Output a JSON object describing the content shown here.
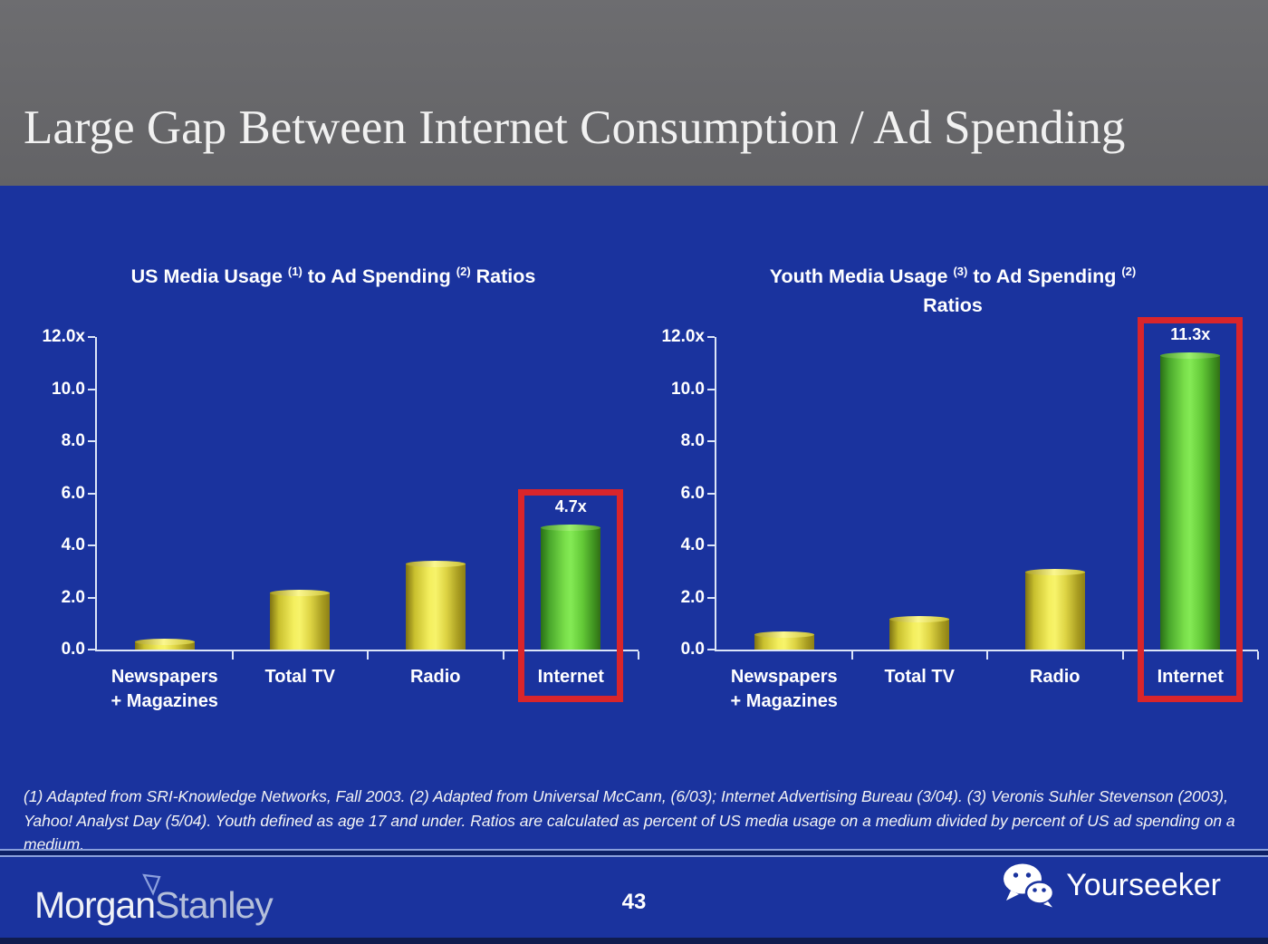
{
  "slide": {
    "title": "Large Gap Between Internet Consumption / Ad Spending",
    "page_number": "43",
    "footnote": "(1) Adapted from SRI-Knowledge Networks, Fall 2003.  (2) Adapted from Universal McCann, (6/03); Internet Advertising Bureau (3/04). (3) Veronis Suhler Stevenson (2003), Yahoo! Analyst Day (5/04).  Youth defined as age 17 and under.  Ratios are calculated as percent of US media usage on a medium divided by percent of US ad spending on a medium.",
    "brand": {
      "part1": "Morgan",
      "part2": "Stanley"
    },
    "watermark": {
      "label": "Yourseeker",
      "icon": "wechat-icon"
    }
  },
  "colors": {
    "background_blue": "#1A339E",
    "header_gray": "#68686B",
    "bar_yellow": "#F0EA55",
    "bar_green": "#6FD943",
    "highlight_red": "#D9252B",
    "axis_light": "#DCE5F8",
    "text_white": "#FFFFFF"
  },
  "chart_data": [
    {
      "type": "bar",
      "title_parts": [
        {
          "text": "US Media Usage "
        },
        {
          "sup": "(1)"
        },
        {
          "text": " to Ad Spending "
        },
        {
          "sup": "(2)"
        },
        {
          "text": " Ratios"
        }
      ],
      "categories": [
        [
          "Newspapers",
          "+ Magazines"
        ],
        [
          "Total TV"
        ],
        [
          "Radio"
        ],
        [
          "Internet"
        ]
      ],
      "values": [
        0.3,
        2.2,
        3.3,
        4.7
      ],
      "bar_colors": [
        "yellow",
        "yellow",
        "yellow",
        "green"
      ],
      "data_labels": [
        null,
        null,
        null,
        "4.7x"
      ],
      "highlight_index": 3,
      "y_ticks": [
        "12.0x",
        "10.0",
        "8.0",
        "6.0",
        "4.0",
        "2.0",
        "0.0"
      ],
      "ylim": [
        0,
        12
      ],
      "y_max": 12,
      "grid": false,
      "legend": "none"
    },
    {
      "type": "bar",
      "title_parts": [
        {
          "text": "Youth Media Usage "
        },
        {
          "sup": "(3)"
        },
        {
          "text": " to Ad Spending "
        },
        {
          "sup": "(2)"
        },
        {
          "br": true
        },
        {
          "text": "Ratios"
        }
      ],
      "categories": [
        [
          "Newspapers",
          "+ Magazines"
        ],
        [
          "Total TV"
        ],
        [
          "Radio"
        ],
        [
          "Internet"
        ]
      ],
      "values": [
        0.6,
        1.2,
        3.0,
        11.3
      ],
      "bar_colors": [
        "yellow",
        "yellow",
        "yellow",
        "green"
      ],
      "data_labels": [
        null,
        null,
        null,
        "11.3x"
      ],
      "highlight_index": 3,
      "y_ticks": [
        "12.0x",
        "10.0",
        "8.0",
        "6.0",
        "4.0",
        "2.0",
        "0.0"
      ],
      "ylim": [
        0,
        12
      ],
      "y_max": 12,
      "grid": false,
      "legend": "none"
    }
  ]
}
